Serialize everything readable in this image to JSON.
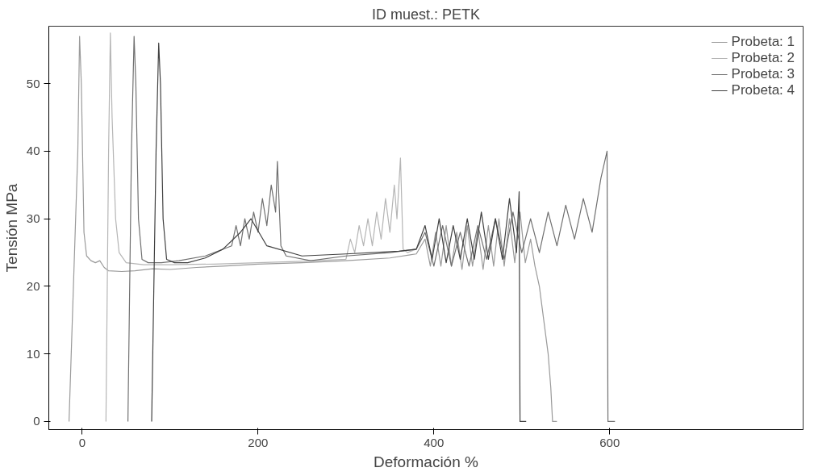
{
  "chart_data": {
    "type": "line",
    "title": "ID muest.: PETK",
    "xlabel": "Deformación %",
    "ylabel": "Tensión MPa",
    "xlim": [
      -38,
      820
    ],
    "ylim": [
      -1.2,
      58.5
    ],
    "xticks": [
      0,
      200,
      400,
      600
    ],
    "yticks": [
      0,
      10,
      20,
      30,
      40,
      50
    ],
    "grid": false,
    "legend": "top right",
    "line_style": "solid",
    "marker": "none",
    "series": [
      {
        "name": "Probeta: 1",
        "color": "#9a9a9a",
        "x": [
          -15,
          -5,
          -3,
          -1,
          2,
          5,
          10,
          15,
          20,
          25,
          30,
          45,
          60,
          80,
          100,
          130,
          160,
          200,
          250,
          300,
          350,
          380,
          390,
          396,
          402,
          408,
          414,
          420,
          426,
          432,
          438,
          444,
          450,
          456,
          462,
          468,
          474,
          480,
          486,
          492,
          498,
          504,
          510,
          515,
          520,
          525,
          530,
          533,
          535,
          540
        ],
        "values": [
          0,
          40,
          57,
          50,
          28,
          24.5,
          23.8,
          23.5,
          23.8,
          22.8,
          22.3,
          22.2,
          22.3,
          22.6,
          22.5,
          22.8,
          23,
          23.3,
          23.5,
          23.8,
          24.2,
          24.8,
          27,
          23,
          28,
          23,
          29,
          23,
          28,
          22.5,
          29,
          23,
          28.5,
          22.5,
          29,
          23,
          30,
          23,
          30,
          23.5,
          31,
          23.5,
          27,
          23,
          20,
          15,
          10,
          5,
          0,
          0
        ]
      },
      {
        "name": "Probeta: 2",
        "color": "#b5b5b5",
        "x": [
          27,
          30,
          32,
          34,
          38,
          42,
          50,
          70,
          100,
          150,
          200,
          250,
          300,
          305,
          310,
          315,
          320,
          325,
          330,
          335,
          340,
          345,
          350,
          355,
          358,
          362,
          365,
          370,
          380
        ],
        "values": [
          0,
          40,
          57.5,
          45,
          30,
          25,
          23.5,
          23.2,
          23.2,
          23.3,
          23.5,
          23.7,
          24,
          27,
          25,
          29,
          26,
          30,
          26,
          31,
          27,
          33,
          28,
          35,
          30,
          39,
          25.5,
          25,
          25.5
        ]
      },
      {
        "name": "Probeta: 3",
        "color": "#707070",
        "x": [
          52,
          56,
          59,
          61,
          64,
          68,
          75,
          90,
          110,
          140,
          170,
          175,
          180,
          185,
          190,
          195,
          200,
          205,
          210,
          215,
          220,
          222,
          226,
          232,
          260,
          300,
          350,
          380,
          390,
          400,
          410,
          420,
          430,
          440,
          450,
          460,
          470,
          480,
          490,
          500,
          510,
          520,
          530,
          540,
          550,
          560,
          570,
          580,
          590,
          597,
          598,
          606
        ],
        "values": [
          0,
          40,
          57,
          50,
          30,
          24,
          23.5,
          23.5,
          23.8,
          24.5,
          26,
          29,
          26,
          30,
          27,
          31,
          28,
          33,
          29,
          35,
          31,
          38.5,
          26,
          24.5,
          23.8,
          24.5,
          25,
          25.5,
          28,
          23,
          29,
          23,
          28,
          23,
          29,
          24,
          30,
          24,
          31,
          25,
          30,
          25,
          31,
          26,
          32,
          27,
          33,
          28,
          36,
          40,
          0,
          0
        ]
      },
      {
        "name": "Probeta: 4",
        "color": "#404040",
        "x": [
          79,
          84,
          87,
          89,
          92,
          96,
          105,
          120,
          140,
          160,
          180,
          192,
          210,
          250,
          300,
          360,
          380,
          390,
          398,
          406,
          414,
          422,
          430,
          438,
          446,
          454,
          462,
          470,
          478,
          486,
          494,
          497,
          498,
          505
        ],
        "values": [
          0,
          40,
          56,
          50,
          30,
          24,
          23.5,
          23.5,
          24.2,
          25.5,
          28,
          30,
          26,
          24.5,
          24.8,
          25.2,
          25.5,
          29,
          24,
          30,
          23.5,
          29,
          24,
          30,
          24,
          31,
          24,
          30,
          24,
          33,
          25,
          34,
          0,
          0
        ]
      }
    ]
  }
}
